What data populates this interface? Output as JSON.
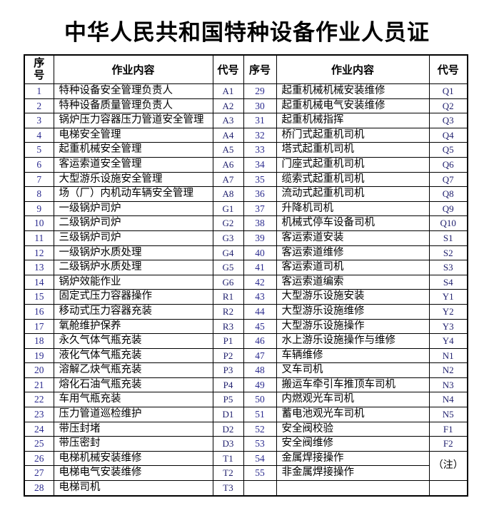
{
  "title": "中华人民共和国特种设备作业人员证",
  "table": {
    "header": {
      "no": "序号",
      "content": "作业内容",
      "code": "代号"
    },
    "left_rows": [
      {
        "no": "1",
        "content": "特种设备安全管理负责人",
        "code": "A1"
      },
      {
        "no": "2",
        "content": "特种设备质量管理负责人",
        "code": "A2"
      },
      {
        "no": "3",
        "content": "锅炉压力容器压力管道安全管理",
        "code": "A3"
      },
      {
        "no": "4",
        "content": "电梯安全管理",
        "code": "A4"
      },
      {
        "no": "5",
        "content": "起重机械安全管理",
        "code": "A5"
      },
      {
        "no": "6",
        "content": "客运索道安全管理",
        "code": "A6"
      },
      {
        "no": "7",
        "content": "大型游乐设施安全管理",
        "code": "A7"
      },
      {
        "no": "8",
        "content": "场（厂）内机动车辆安全管理",
        "code": "A8"
      },
      {
        "no": "9",
        "content": "一级锅炉司炉",
        "code": "G1"
      },
      {
        "no": "10",
        "content": "二级锅炉司炉",
        "code": "G2"
      },
      {
        "no": "11",
        "content": "三级锅炉司炉",
        "code": "G3"
      },
      {
        "no": "12",
        "content": "一级锅炉水质处理",
        "code": "G4"
      },
      {
        "no": "13",
        "content": "二级锅炉水质处理",
        "code": "G5"
      },
      {
        "no": "14",
        "content": "锅炉效能作业",
        "code": "G6"
      },
      {
        "no": "15",
        "content": "固定式压力容器操作",
        "code": "R1"
      },
      {
        "no": "16",
        "content": "移动式压力容器充装",
        "code": "R2"
      },
      {
        "no": "17",
        "content": "氧舱维护保养",
        "code": "R3"
      },
      {
        "no": "18",
        "content": "永久气体气瓶充装",
        "code": "P1"
      },
      {
        "no": "19",
        "content": "液化气体气瓶充装",
        "code": "P2"
      },
      {
        "no": "20",
        "content": "溶解乙炔气瓶充装",
        "code": "P3"
      },
      {
        "no": "21",
        "content": "熔化石油气瓶充装",
        "code": "P4"
      },
      {
        "no": "22",
        "content": "车用气瓶充装",
        "code": "P5"
      },
      {
        "no": "23",
        "content": "压力管道巡检维护",
        "code": "D1"
      },
      {
        "no": "24",
        "content": "带压封堵",
        "code": "D2"
      },
      {
        "no": "25",
        "content": "带压密封",
        "code": "D3"
      },
      {
        "no": "26",
        "content": "电梯机械安装维修",
        "code": "T1"
      },
      {
        "no": "27",
        "content": "电梯电气安装维修",
        "code": "T2"
      },
      {
        "no": "28",
        "content": "电梯司机",
        "code": "T3"
      }
    ],
    "right_rows": [
      {
        "no": "29",
        "content": "起重机械机械安装维修",
        "code": "Q1"
      },
      {
        "no": "30",
        "content": "起重机械电气安装维修",
        "code": "Q2"
      },
      {
        "no": "31",
        "content": "起重机械指挥",
        "code": "Q3"
      },
      {
        "no": "32",
        "content": "桥门式起重机司机",
        "code": "Q4"
      },
      {
        "no": "33",
        "content": "塔式起重机司机",
        "code": "Q5"
      },
      {
        "no": "34",
        "content": "门座式起重机司机",
        "code": "Q6"
      },
      {
        "no": "35",
        "content": "缆索式起重机司机",
        "code": "Q7"
      },
      {
        "no": "36",
        "content": "流动式起重机司机",
        "code": "Q8"
      },
      {
        "no": "37",
        "content": "升降机司机",
        "code": "Q9"
      },
      {
        "no": "38",
        "content": "机械式停车设备司机",
        "code": "Q10"
      },
      {
        "no": "39",
        "content": "客运索道安装",
        "code": "S1"
      },
      {
        "no": "40",
        "content": "客运索道维修",
        "code": "S2"
      },
      {
        "no": "41",
        "content": "客运索道司机",
        "code": "S3"
      },
      {
        "no": "42",
        "content": "客运索道编索",
        "code": "S4"
      },
      {
        "no": "43",
        "content": "大型游乐设施安装",
        "code": "Y1"
      },
      {
        "no": "44",
        "content": "大型游乐设施维修",
        "code": "Y2"
      },
      {
        "no": "45",
        "content": "大型游乐设施操作",
        "code": "Y3"
      },
      {
        "no": "46",
        "content": "水上游乐设施操作与维修",
        "code": "Y4"
      },
      {
        "no": "47",
        "content": "车辆维修",
        "code": "N1"
      },
      {
        "no": "48",
        "content": "叉车司机",
        "code": "N2"
      },
      {
        "no": "49",
        "content": "搬运车牵引车推顶车司机",
        "code": "N3"
      },
      {
        "no": "50",
        "content": "内燃观光车司机",
        "code": "N4"
      },
      {
        "no": "51",
        "content": "蓄电池观光车司机",
        "code": "N5"
      },
      {
        "no": "52",
        "content": "安全阀校验",
        "code": "F1"
      },
      {
        "no": "53",
        "content": "安全阀维修",
        "code": "F2"
      },
      {
        "no": "54",
        "content": "金属焊接操作",
        "code": "（注）",
        "code_rowspan": 2,
        "code_note": true
      },
      {
        "no": "55",
        "content": "非金属焊接操作",
        "code": null
      },
      {
        "no": "",
        "content": "",
        "code": ""
      }
    ]
  }
}
